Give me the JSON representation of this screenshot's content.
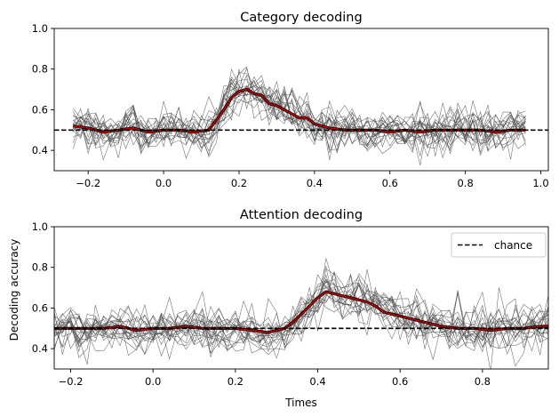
{
  "chart_data": [
    {
      "type": "line",
      "title": "Category decoding",
      "xlabel": "",
      "ylabel": "",
      "xlim": [
        -0.29,
        1.02
      ],
      "ylim": [
        0.3,
        1.0
      ],
      "xticks": [
        -0.2,
        0.0,
        0.2,
        0.4,
        0.6,
        0.8,
        1.0
      ],
      "xtick_labels": [
        "−0.2",
        "0.0",
        "0.2",
        "0.4",
        "0.6",
        "0.8",
        "1.0"
      ],
      "yticks": [
        0.4,
        0.6,
        0.8,
        1.0
      ],
      "ytick_labels": [
        "0.4",
        "0.6",
        "0.8",
        "1.0"
      ],
      "n_subjects": 20,
      "subject_noise": 0.05,
      "chance": 0.5,
      "x_start": -0.24,
      "x_end": 0.96,
      "x_step": 0.02,
      "mean_x": [
        -0.24,
        -0.2,
        -0.16,
        -0.12,
        -0.08,
        -0.04,
        0.0,
        0.04,
        0.08,
        0.12,
        0.14,
        0.16,
        0.18,
        0.2,
        0.22,
        0.24,
        0.26,
        0.28,
        0.3,
        0.32,
        0.34,
        0.36,
        0.38,
        0.4,
        0.42,
        0.44,
        0.48,
        0.52,
        0.56,
        0.6,
        0.64,
        0.68,
        0.72,
        0.76,
        0.8,
        0.84,
        0.88,
        0.92,
        0.96
      ],
      "mean_y": [
        0.52,
        0.51,
        0.49,
        0.5,
        0.51,
        0.49,
        0.5,
        0.5,
        0.49,
        0.5,
        0.55,
        0.6,
        0.66,
        0.69,
        0.7,
        0.68,
        0.67,
        0.63,
        0.62,
        0.6,
        0.58,
        0.56,
        0.56,
        0.53,
        0.52,
        0.51,
        0.5,
        0.5,
        0.5,
        0.49,
        0.5,
        0.49,
        0.5,
        0.5,
        0.5,
        0.5,
        0.49,
        0.5,
        0.5
      ],
      "mean_color": "#cc0000",
      "subject_color": "#4d4d4d",
      "chance_color": "#000000"
    },
    {
      "type": "line",
      "title": "Attention decoding",
      "xlabel": "Times",
      "ylabel": "Decoding accuracy",
      "xlim": [
        -0.24,
        0.96
      ],
      "ylim": [
        0.3,
        1.0
      ],
      "xticks": [
        -0.2,
        0.0,
        0.2,
        0.4,
        0.6,
        0.8
      ],
      "xtick_labels": [
        "−0.2",
        "0.0",
        "0.2",
        "0.4",
        "0.6",
        "0.8"
      ],
      "yticks": [
        0.4,
        0.6,
        0.8,
        1.0
      ],
      "ytick_labels": [
        "0.4",
        "0.6",
        "0.8",
        "1.0"
      ],
      "n_subjects": 20,
      "subject_noise": 0.055,
      "chance": 0.5,
      "x_start": -0.24,
      "x_end": 0.96,
      "x_step": 0.02,
      "mean_x": [
        -0.24,
        -0.2,
        -0.16,
        -0.12,
        -0.08,
        -0.04,
        0.0,
        0.04,
        0.08,
        0.12,
        0.16,
        0.2,
        0.24,
        0.28,
        0.32,
        0.34,
        0.36,
        0.38,
        0.4,
        0.42,
        0.44,
        0.46,
        0.48,
        0.5,
        0.52,
        0.54,
        0.56,
        0.58,
        0.6,
        0.62,
        0.64,
        0.66,
        0.7,
        0.74,
        0.78,
        0.82,
        0.86,
        0.9,
        0.94,
        0.96
      ],
      "mean_y": [
        0.5,
        0.5,
        0.5,
        0.5,
        0.51,
        0.49,
        0.5,
        0.5,
        0.51,
        0.5,
        0.5,
        0.5,
        0.49,
        0.48,
        0.5,
        0.53,
        0.57,
        0.61,
        0.65,
        0.68,
        0.67,
        0.66,
        0.65,
        0.64,
        0.63,
        0.61,
        0.58,
        0.57,
        0.56,
        0.55,
        0.54,
        0.53,
        0.51,
        0.5,
        0.5,
        0.49,
        0.5,
        0.5,
        0.51,
        0.51
      ],
      "mean_color": "#cc0000",
      "subject_color": "#4d4d4d",
      "chance_color": "#000000",
      "legend": {
        "label": "chance",
        "placement": "top-right"
      }
    }
  ]
}
